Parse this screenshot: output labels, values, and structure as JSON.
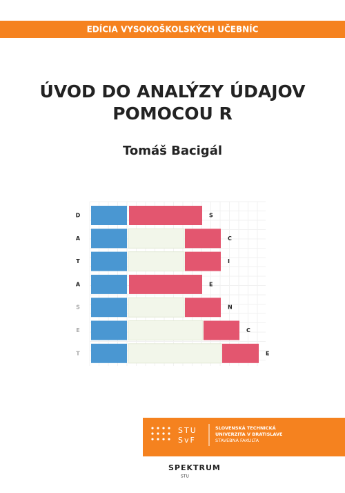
{
  "header": {
    "series": "EDÍCIA VYSOKOŠKOLSKÝCH UČEBNÍC"
  },
  "title": {
    "lines": [
      "ÚVOD DO ANALÝZY ÚDAJOV",
      "POMOCOU R"
    ]
  },
  "author": "Tomáš Bacigál",
  "illustration": {
    "left_letters": [
      "D",
      "A",
      "T",
      "A",
      "S",
      "E",
      "T"
    ],
    "right_letters": [
      "S",
      "C",
      "I",
      "E",
      "N",
      "C",
      "E"
    ]
  },
  "logo": {
    "mark": [
      "STU",
      "SvF"
    ],
    "institution": [
      "SLOVENSKÁ TECHNICKÁ",
      "UNIVERZITA V BRATISLAVE",
      "STAVEBNÁ FAKULTA"
    ]
  },
  "publisher": {
    "name": "SPEKTRUM",
    "sub": "STU"
  }
}
